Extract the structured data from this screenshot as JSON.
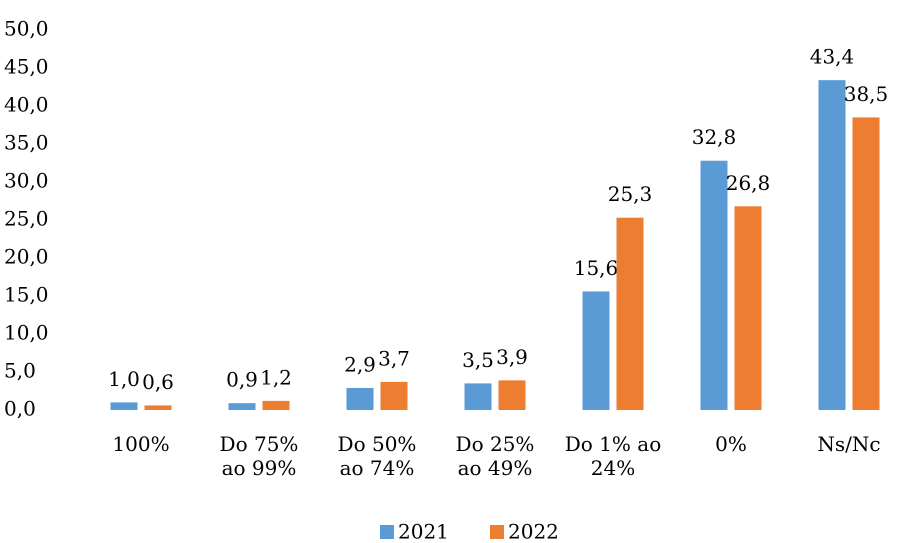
{
  "chart_data": {
    "type": "bar",
    "categories": [
      "100%",
      "Do 75%\nao 99%",
      "Do 50%\nao 74%",
      "Do 25%\nao 49%",
      "Do 1% ao\n24%",
      "0%",
      "Ns/Nc"
    ],
    "series": [
      {
        "name": "2021",
        "color": "#5b9bd5",
        "values": [
          1.0,
          0.9,
          2.9,
          3.5,
          15.6,
          32.8,
          43.4
        ],
        "value_labels": [
          "1,0",
          "0,9",
          "2,9",
          "3,5",
          "15,6",
          "32,8",
          "43,4"
        ]
      },
      {
        "name": "2022",
        "color": "#ed7d31",
        "values": [
          0.6,
          1.2,
          3.7,
          3.9,
          25.3,
          26.8,
          38.5
        ],
        "value_labels": [
          "0,6",
          "1,2",
          "3,7",
          "3,9",
          "25,3",
          "26,8",
          "38,5"
        ]
      }
    ],
    "ylim": [
      0,
      50
    ],
    "yticks": [
      {
        "value": 0,
        "label": "0,0"
      },
      {
        "value": 5,
        "label": "5,0"
      },
      {
        "value": 10,
        "label": "10,0"
      },
      {
        "value": 15,
        "label": "15,0"
      },
      {
        "value": 20,
        "label": "20,0"
      },
      {
        "value": 25,
        "label": "25,0"
      },
      {
        "value": 30,
        "label": "30,0"
      },
      {
        "value": 35,
        "label": "35,0"
      },
      {
        "value": 40,
        "label": "40,0"
      },
      {
        "value": 45,
        "label": "45,0"
      },
      {
        "value": 50,
        "label": "50,0"
      }
    ],
    "legend": "bottom",
    "grid": false
  }
}
